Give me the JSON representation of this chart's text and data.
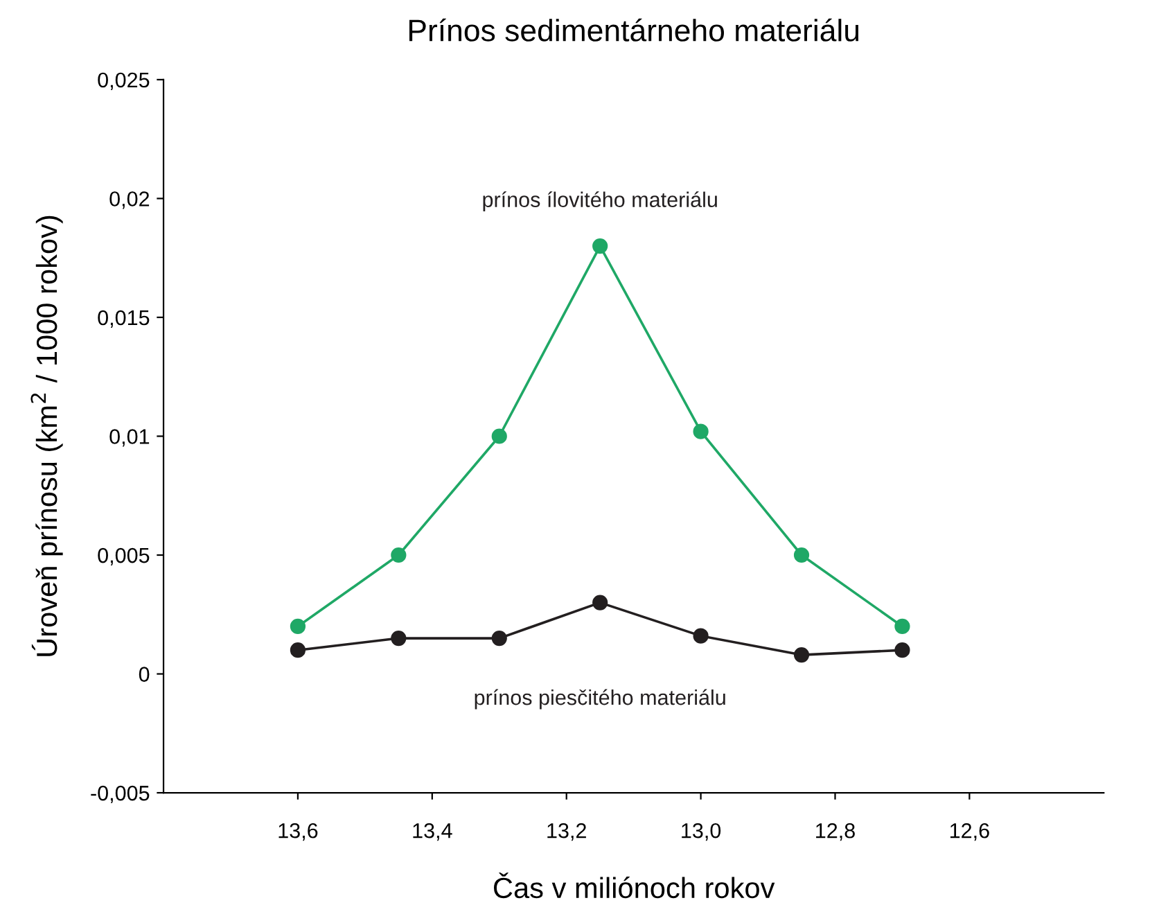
{
  "chart_data": {
    "type": "line",
    "title": "Prínos sedimentárneho materiálu",
    "xlabel": "Čas v miliónoch rokov",
    "ylabel": "Úroveň prínosu (km$^{2}$ / 1000 rokov)",
    "x": [
      13.6,
      13.45,
      13.3,
      13.15,
      13.0,
      12.85,
      12.7
    ],
    "series": [
      {
        "name": "prínos ílovitého materiálu",
        "color": "#1fa866",
        "values": [
          0.002,
          0.005,
          0.01,
          0.018,
          0.0102,
          0.005,
          0.002
        ]
      },
      {
        "name": "prínos piesčitého materiálu",
        "color": "#231f20",
        "values": [
          0.001,
          0.0015,
          0.0015,
          0.003,
          0.0016,
          0.0008,
          0.001
        ]
      }
    ],
    "xlim": [
      13.8,
      12.4
    ],
    "ylim": [
      -0.005,
      0.025
    ],
    "xticks": [
      {
        "value": 13.6,
        "label": "13,6"
      },
      {
        "value": 13.4,
        "label": "13,4"
      },
      {
        "value": 13.2,
        "label": "13,2"
      },
      {
        "value": 13.0,
        "label": "13,0"
      },
      {
        "value": 12.8,
        "label": "12,8"
      },
      {
        "value": 12.6,
        "label": "12,6"
      }
    ],
    "yticks": [
      {
        "value": -0.005,
        "label": "-0,005"
      },
      {
        "value": 0,
        "label": "0"
      },
      {
        "value": 0.005,
        "label": "0,005"
      },
      {
        "value": 0.01,
        "label": "0,01"
      },
      {
        "value": 0.015,
        "label": "0,015"
      },
      {
        "value": 0.02,
        "label": "0,02"
      },
      {
        "value": 0.025,
        "label": "0,025"
      }
    ],
    "grid": false,
    "legend": false,
    "marker": "circle",
    "line_style": "solid"
  }
}
